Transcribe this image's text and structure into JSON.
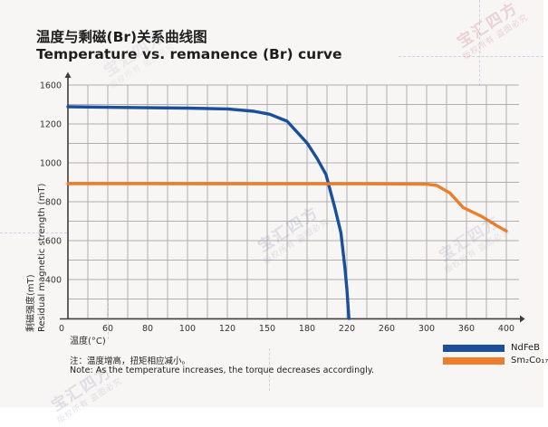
{
  "header": {
    "title_zh": "温度与剩磁(Br)关系曲线图",
    "title_en": "Temperature vs. remanence (Br) curve"
  },
  "chart_data": {
    "type": "line",
    "xlabel": "温度(°C)",
    "ylabel_zh": "剩磁强度(mT)",
    "ylabel_en": "Residual magnetic strength (mT)",
    "x_tick_labels": [
      "0",
      "60",
      "80",
      "100",
      "120",
      "150",
      "180",
      "220",
      "260",
      "300",
      "360",
      "400"
    ],
    "x_tick_values": [
      0,
      60,
      80,
      100,
      120,
      150,
      180,
      220,
      260,
      300,
      360,
      400
    ],
    "y_tick_labels": [
      "1600",
      "1200",
      "1000",
      "800",
      "600",
      "400"
    ],
    "y_scale_ticks": [
      1600,
      1200,
      1000,
      800,
      600,
      400,
      0
    ],
    "grid": "on",
    "legend_position": "bottom-right",
    "series": [
      {
        "name": "NdFeB",
        "color": "#1a4f9b",
        "points": [
          [
            0,
            1377
          ],
          [
            60,
            1371
          ],
          [
            100,
            1363
          ],
          [
            120,
            1354
          ],
          [
            140,
            1330
          ],
          [
            152,
            1300
          ],
          [
            165,
            1228
          ],
          [
            180,
            1102
          ],
          [
            190,
            1023
          ],
          [
            199,
            940
          ],
          [
            208,
            767
          ],
          [
            214,
            640
          ],
          [
            218,
            460
          ],
          [
            220,
            300
          ],
          [
            222,
            0
          ]
        ]
      },
      {
        "name": "Sm₂Co₁₇",
        "color": "#ed7d2a",
        "points": [
          [
            0,
            893
          ],
          [
            80,
            893
          ],
          [
            160,
            892
          ],
          [
            240,
            892
          ],
          [
            300,
            890
          ],
          [
            315,
            884
          ],
          [
            335,
            845
          ],
          [
            355,
            770
          ],
          [
            375,
            725
          ],
          [
            390,
            678
          ],
          [
            400,
            650
          ]
        ]
      }
    ],
    "legend": [
      {
        "label": "NdFeB",
        "color": "#1a4f9b"
      },
      {
        "label": "Sm₂Co₁₇",
        "color": "#ed7d2a"
      }
    ],
    "axis_color": "#3d3d3d",
    "grid_color": "#aeaeae",
    "tick_color": "#333333"
  },
  "footnote": {
    "zh": "注：温度增高，扭矩相应减小。",
    "en": "Note: As the temperature increases, the torque decreases accordingly."
  },
  "watermark": {
    "brand": "宝汇四方",
    "notice": "版权所有 盗图必究"
  }
}
